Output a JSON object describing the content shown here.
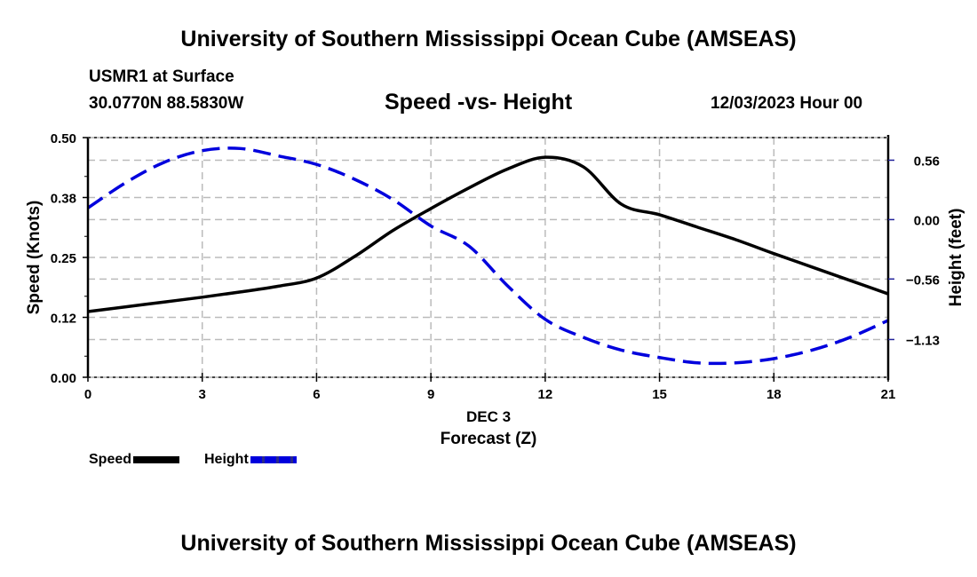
{
  "header": {
    "main_title": "University of Southern Mississippi Ocean Cube (AMSEAS)",
    "station": "USMR1 at Surface",
    "coords": "30.0770N  88.5830W",
    "subtitle": "Speed -vs- Height",
    "datetime": "12/03/2023 Hour 00"
  },
  "footer": {
    "bottom_title": "University of Southern Mississippi Ocean Cube (AMSEAS)"
  },
  "colors": {
    "speed": "#000000",
    "height": "#0000dd",
    "grid": "#bbbbbb"
  },
  "chart_data": {
    "type": "line",
    "title": "Speed -vs- Height",
    "xlabel": "Forecast (Z)",
    "xlabel_date": "DEC 3",
    "ylabel": "Speed (Knots)",
    "y2label": "Height (feet)",
    "x": [
      0,
      1,
      2,
      3,
      4,
      5,
      6,
      7,
      8,
      9,
      10,
      11,
      12,
      13,
      14,
      15,
      16,
      17,
      18,
      19,
      20,
      21
    ],
    "xlim": [
      0,
      21
    ],
    "xticks": [
      0,
      3,
      6,
      9,
      12,
      15,
      18,
      21
    ],
    "xtick_labels": [
      "0",
      "3",
      "6",
      "9",
      "12",
      "15",
      "18",
      "21"
    ],
    "ylim": [
      0,
      0.5
    ],
    "yticks": [
      0.0,
      0.125,
      0.25,
      0.375,
      0.5
    ],
    "ytick_labels": [
      "0.00",
      "0.12",
      "0.25",
      "0.38",
      "0.50"
    ],
    "y2lim": [
      -1.486,
      0.773
    ],
    "y2ticks": [
      0.56,
      0.0,
      -0.56,
      -1.13
    ],
    "y2tick_labels": [
      "0.56",
      "0.00",
      "−0.56",
      "−1.13"
    ],
    "grid": true,
    "legend_position": "bottom-left",
    "series": [
      {
        "name": "Speed",
        "axis": "left",
        "style": "solid",
        "values": [
          0.137,
          0.147,
          0.157,
          0.167,
          0.178,
          0.19,
          0.207,
          0.252,
          0.306,
          0.352,
          0.395,
          0.434,
          0.459,
          0.439,
          0.361,
          0.339,
          0.313,
          0.287,
          0.258,
          0.23,
          0.202,
          0.174
        ]
      },
      {
        "name": "Height",
        "axis": "right",
        "style": "dashed",
        "values": [
          0.11,
          0.35,
          0.54,
          0.65,
          0.67,
          0.6,
          0.52,
          0.38,
          0.19,
          -0.06,
          -0.25,
          -0.62,
          -0.94,
          -1.11,
          -1.23,
          -1.3,
          -1.35,
          -1.35,
          -1.31,
          -1.23,
          -1.11,
          -0.95
        ]
      }
    ]
  }
}
